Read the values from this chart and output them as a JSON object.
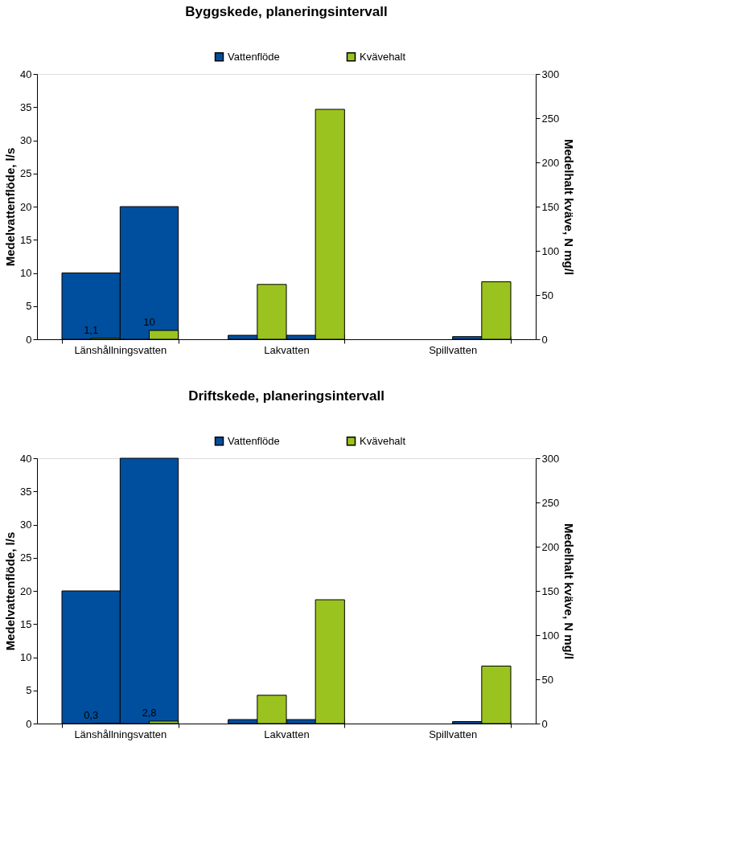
{
  "chart_data": [
    {
      "type": "bar",
      "title": "Byggskede, planeringsintervall",
      "ylabel": "Medelvattenflöde, l/s",
      "y2label": "Medelhalt kväve, N mg/l",
      "categories": [
        "Länshållningsvatten",
        "Lakvatten",
        "Spillvatten"
      ],
      "series": [
        {
          "name": "Vattenflöde",
          "color": "#004f9f",
          "values": [
            10,
            0.6,
            null
          ]
        },
        {
          "color": "#004f9f",
          "values": [
            20,
            0.6,
            0.4
          ]
        },
        {
          "name": "Kvävehalt",
          "color": "#9bc31f",
          "axis": "y2",
          "values": [
            1.1,
            62,
            null
          ],
          "value_labels": [
            "1,1",
            null,
            null
          ]
        },
        {
          "color": "#9bc31f",
          "axis": "y2",
          "values": [
            10,
            260,
            65
          ],
          "value_labels": [
            "10",
            null,
            null
          ]
        }
      ],
      "ylim": [
        0,
        40
      ],
      "yticks": [
        0,
        5,
        10,
        15,
        20,
        25,
        30,
        35,
        40
      ],
      "y2lim": [
        0,
        300
      ],
      "y2ticks": [
        0,
        50,
        100,
        150,
        200,
        250,
        300
      ],
      "grid": false,
      "legend": "top"
    },
    {
      "type": "bar",
      "title": "Driftskede, planeringsintervall",
      "ylabel": "Medelvattenflöde, l/s",
      "y2label": "Medelhalt kväve, N mg/l",
      "categories": [
        "Länshållningsvatten",
        "Lakvatten",
        "Spillvatten"
      ],
      "series": [
        {
          "name": "Vattenflöde",
          "color": "#004f9f",
          "values": [
            20,
            0.6,
            null
          ]
        },
        {
          "color": "#004f9f",
          "values": [
            40,
            0.6,
            0.3
          ]
        },
        {
          "name": "Kvävehalt",
          "color": "#9bc31f",
          "axis": "y2",
          "values": [
            0.3,
            32,
            null
          ],
          "value_labels": [
            "0,3",
            null,
            null
          ]
        },
        {
          "color": "#9bc31f",
          "axis": "y2",
          "values": [
            2.8,
            140,
            65
          ],
          "value_labels": [
            "2,8",
            null,
            null
          ]
        }
      ],
      "ylim": [
        0,
        40
      ],
      "yticks": [
        0,
        5,
        10,
        15,
        20,
        25,
        30,
        35,
        40
      ],
      "y2lim": [
        0,
        300
      ],
      "y2ticks": [
        0,
        50,
        100,
        150,
        200,
        250,
        300
      ],
      "grid": false,
      "legend": "top"
    }
  ]
}
